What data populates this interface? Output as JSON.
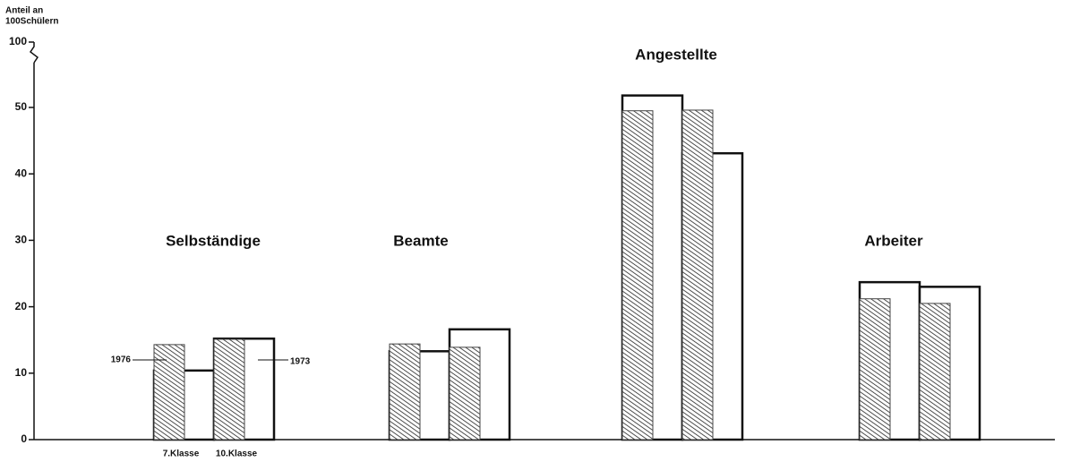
{
  "chart_data": {
    "type": "grouped_bar",
    "y_label": [
      "Anteil an",
      "100Schülern"
    ],
    "categories": [
      "Selbständige",
      "Beamte",
      "Angestellte",
      "Arbeiter"
    ],
    "subcategories": [
      "7.Klasse",
      "10.Klasse"
    ],
    "series": [
      {
        "name": "1976",
        "color": "#222222",
        "pattern": "hatched",
        "values": [
          [
            14.3,
            15.1
          ],
          [
            14.4,
            13.9
          ],
          [
            49.5,
            49.6
          ],
          [
            21.2,
            20.5
          ]
        ]
      },
      {
        "name": "1973",
        "color": "#ffffff",
        "pattern": "outline",
        "values": [
          [
            10.4,
            15.2
          ],
          [
            13.3,
            16.6
          ],
          [
            51.8,
            43.1
          ],
          [
            23.7,
            23.0
          ]
        ]
      }
    ],
    "ylim": [
      0,
      58
    ],
    "yticks": [
      0,
      10,
      20,
      30,
      40,
      50,
      100
    ],
    "axis_break": true
  }
}
